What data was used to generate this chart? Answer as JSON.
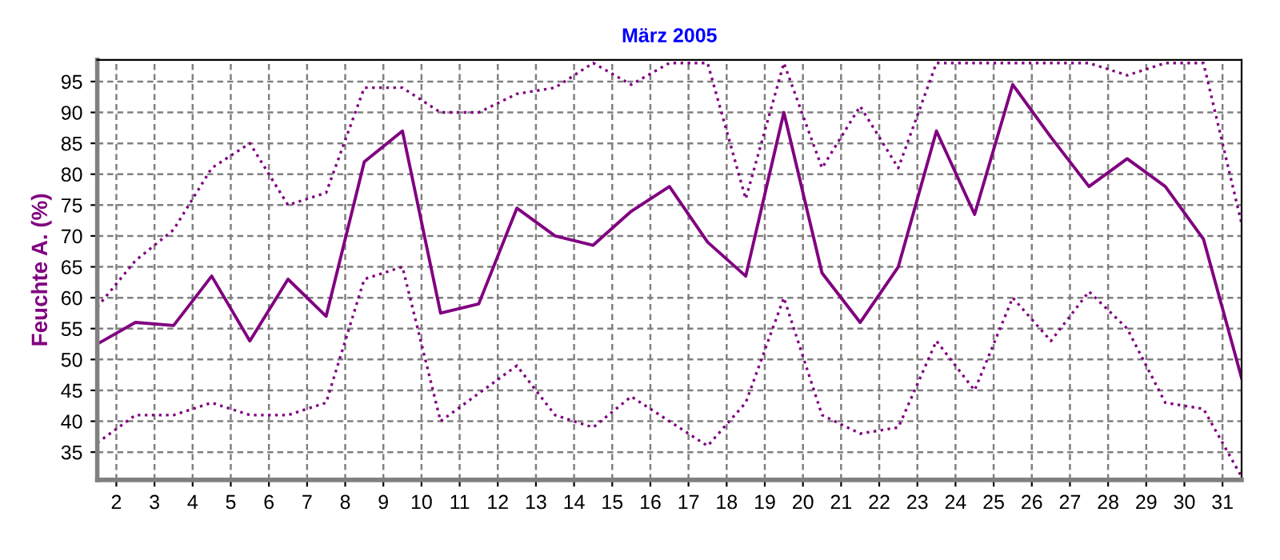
{
  "chart_data": {
    "type": "line",
    "title": "März 2005",
    "ylabel": "Feuchte A. (%)",
    "x": [
      1.5,
      2.5,
      3.5,
      4.5,
      5.5,
      6.5,
      7.5,
      8.5,
      9.5,
      10.5,
      11.5,
      12.5,
      13.5,
      14.5,
      15.5,
      16.5,
      17.5,
      18.5,
      19.5,
      20.5,
      21.5,
      22.5,
      23.5,
      24.5,
      25.5,
      26.5,
      27.5,
      28.5,
      29.5,
      30.5,
      31.5
    ],
    "series": [
      {
        "color": "#800080",
        "line_style": "dotted",
        "values": [
          58.5,
          66,
          71,
          81,
          85,
          75,
          77,
          94,
          94,
          90,
          90,
          93,
          94,
          98,
          94.5,
          98,
          98,
          76,
          98,
          81,
          91,
          81,
          98,
          98,
          98,
          98,
          98,
          96,
          98,
          98,
          72
        ]
      },
      {
        "color": "#800080",
        "line_style": "solid",
        "values": [
          52.5,
          56,
          55.5,
          63.5,
          53,
          63,
          57,
          82,
          87,
          57.5,
          59,
          74.5,
          70,
          68.5,
          74,
          78,
          69,
          63.5,
          90,
          64,
          56,
          65,
          87,
          73.5,
          94.5,
          86,
          78,
          82.5,
          78,
          69.5,
          47
        ]
      },
      {
        "color": "#800080",
        "line_style": "dotted",
        "values": [
          36.5,
          41,
          41,
          43,
          41,
          41,
          43,
          63,
          65,
          40,
          44.5,
          49,
          41,
          39,
          44,
          40,
          36,
          43,
          60,
          41,
          38,
          39,
          53,
          45,
          60,
          53,
          61,
          55,
          43,
          42,
          31
        ]
      }
    ],
    "xlim": [
      1.5,
      31.5
    ],
    "ylim": [
      30.5,
      98.5
    ],
    "xticks": [
      2,
      3,
      4,
      5,
      6,
      7,
      8,
      9,
      10,
      11,
      12,
      13,
      14,
      15,
      16,
      17,
      18,
      19,
      20,
      21,
      22,
      23,
      24,
      25,
      26,
      27,
      28,
      29,
      30,
      31
    ],
    "yticks": [
      35,
      40,
      45,
      50,
      55,
      60,
      65,
      70,
      75,
      80,
      85,
      90,
      95
    ],
    "grid": true,
    "marker": "none",
    "legend": false
  }
}
